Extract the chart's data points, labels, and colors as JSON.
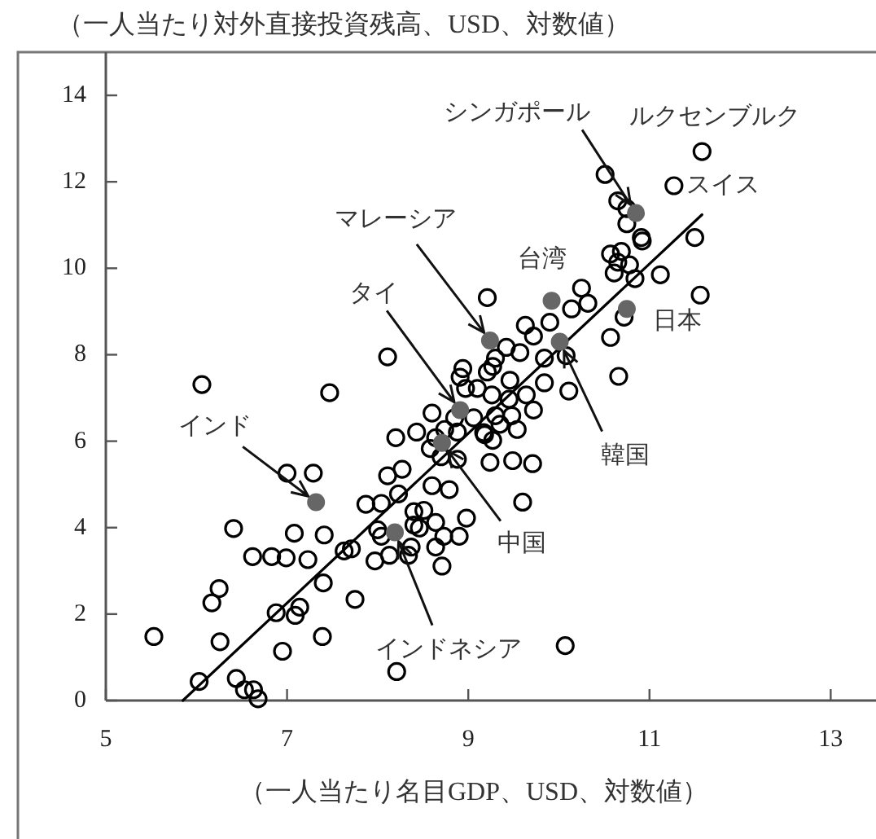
{
  "chart_data": {
    "type": "scatter",
    "ylabel": "（一人当たり対外直接投資残高、USD、対数値）",
    "xlabel": "（一人当たり名目GDP、USD、対数値）",
    "xlim": [
      5,
      13.5
    ],
    "ylim": [
      0,
      15
    ],
    "xticks": [
      5,
      7,
      9,
      11,
      13
    ],
    "yticks": [
      0,
      2,
      4,
      6,
      8,
      10,
      12,
      14
    ],
    "marker": "circle",
    "series": [
      {
        "color": "#000000",
        "x": [
          5.53,
          6.03,
          6.26,
          6.17,
          6.25,
          6.41,
          6.44,
          6.53,
          6.63,
          6.68,
          6.62,
          6.83,
          6.99,
          6.88,
          6.95,
          7.09,
          7.14,
          7.08,
          7.0,
          7.29,
          7.23,
          7.41,
          7.4,
          7.39,
          7.63,
          7.71,
          7.75,
          7.87,
          8.04,
          7.97,
          8.0,
          8.11,
          8.27,
          8.2,
          8.23,
          8.13,
          8.21,
          8.34,
          8.4,
          8.51,
          8.43,
          8.6,
          8.64,
          8.6,
          8.79,
          8.64,
          8.73,
          8.9,
          8.64,
          8.71,
          8.88,
          8.98,
          6.06,
          7.47,
          8.11,
          8.91,
          11.58,
          10.51,
          11.27,
          10.65,
          10.75,
          10.91,
          11.5,
          10.57,
          10.69,
          10.65,
          10.78,
          10.61,
          10.84,
          11.12,
          11.56,
          10.72,
          10.57,
          10.66,
          10.25,
          10.14,
          10.32,
          9.9,
          10.08,
          9.84,
          9.21,
          9.63,
          9.72,
          9.57,
          9.42,
          9.3,
          9.84,
          10.11,
          9.21,
          9.1,
          9.26,
          9.46,
          9.64,
          9.45,
          9.06,
          9.17,
          9.35,
          9.48,
          9.72,
          9.54,
          9.27,
          9.24,
          9.49,
          9.71,
          8.74,
          8.85,
          8.97,
          8.94,
          9.6,
          10.07,
          8.7,
          10.92,
          10.75,
          8.88,
          8.4,
          8.37,
          8.46,
          8.04,
          9.27,
          9.3,
          9.18,
          8.58
        ],
        "values": [
          1.48,
          0.44,
          1.36,
          2.26,
          2.59,
          3.98,
          0.51,
          0.25,
          0.25,
          0.04,
          3.33,
          3.33,
          3.3,
          2.03,
          1.14,
          1.97,
          2.16,
          3.87,
          5.26,
          5.26,
          3.26,
          3.83,
          2.72,
          1.48,
          3.46,
          3.51,
          2.34,
          4.54,
          4.56,
          3.23,
          3.95,
          5.2,
          5.35,
          6.08,
          4.78,
          3.36,
          0.67,
          3.36,
          4.06,
          4.4,
          6.21,
          6.65,
          6.08,
          4.97,
          4.88,
          4.12,
          3.8,
          3.8,
          3.55,
          3.11,
          5.58,
          4.22,
          7.31,
          7.12,
          7.95,
          7.48,
          12.7,
          12.17,
          11.91,
          11.56,
          11.03,
          10.71,
          10.71,
          10.33,
          10.39,
          10.14,
          10.08,
          9.89,
          9.76,
          9.85,
          9.38,
          8.87,
          8.4,
          7.5,
          9.54,
          9.06,
          9.19,
          8.75,
          7.98,
          7.92,
          9.32,
          8.68,
          8.43,
          8.05,
          8.17,
          7.92,
          7.35,
          7.16,
          7.6,
          7.22,
          7.07,
          7.41,
          7.07,
          6.97,
          6.54,
          6.2,
          6.39,
          6.59,
          6.72,
          6.27,
          6.02,
          5.51,
          5.55,
          5.48,
          6.27,
          6.54,
          7.22,
          7.68,
          4.59,
          1.27,
          5.64,
          10.63,
          11.38,
          6.21,
          4.37,
          3.55,
          3.99,
          3.8,
          7.73,
          6.59,
          6.15,
          5.83
        ]
      },
      {
        "type": "line",
        "color": "#000000",
        "marker": "none",
        "x": [
          5.85,
          11.58
        ],
        "values": [
          0,
          11.24
        ]
      },
      {
        "color": "#666666",
        "x": [
          10.85,
          9.92,
          10.75,
          9.24,
          10.01,
          8.91,
          8.71,
          7.32,
          8.19
        ],
        "values": [
          11.28,
          9.25,
          9.06,
          8.33,
          8.3,
          6.72,
          5.96,
          4.59,
          3.89
        ]
      }
    ],
    "annotations": [
      {
        "text": "シンガポール",
        "x": 10.85,
        "y": 11.28
      },
      {
        "text": "ルクセンブルク",
        "x": 11.58,
        "y": 12.7
      },
      {
        "text": "スイス",
        "x": 11.27,
        "y": 11.91
      },
      {
        "text": "台湾",
        "x": 9.92,
        "y": 9.25
      },
      {
        "text": "日本",
        "x": 10.75,
        "y": 9.06
      },
      {
        "text": "マレーシア",
        "x": 9.24,
        "y": 8.33
      },
      {
        "text": "タイ",
        "x": 8.91,
        "y": 6.72
      },
      {
        "text": "韓国",
        "x": 10.01,
        "y": 8.3
      },
      {
        "text": "中国",
        "x": 8.71,
        "y": 5.96
      },
      {
        "text": "インドネシア",
        "x": 8.19,
        "y": 3.89
      },
      {
        "text": "インド",
        "x": 7.32,
        "y": 4.59
      }
    ]
  }
}
